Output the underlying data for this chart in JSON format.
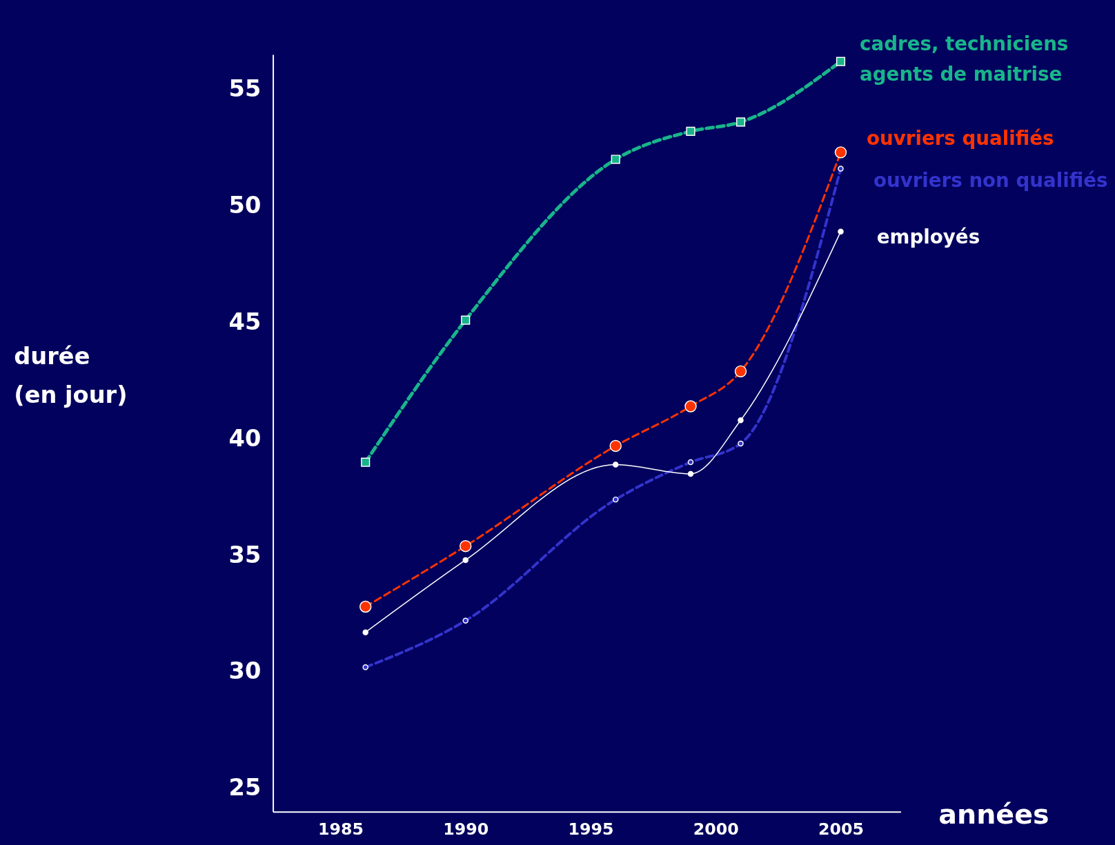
{
  "chart_data": {
    "type": "line",
    "xlabel": "années",
    "ylabel": "durée\n(en jour)",
    "x": [
      1986,
      1990,
      1996,
      1999,
      2001,
      2005
    ],
    "series": [
      {
        "name": "cadres, techniciens\nagents de maitrise",
        "color": "#19b58a",
        "marker": "square",
        "line_style": "dashed",
        "values": [
          39.0,
          45.1,
          52.0,
          53.2,
          53.6,
          56.2
        ]
      },
      {
        "name": "ouvriers qualifiés",
        "color": "#ff3300",
        "marker": "circle",
        "line_style": "dashed",
        "values": [
          32.8,
          35.4,
          39.7,
          41.4,
          42.9,
          52.3
        ]
      },
      {
        "name": "ouvriers non qualifiés",
        "color": "#3333cc",
        "marker": "circle",
        "line_style": "dashed",
        "values": [
          30.2,
          32.2,
          37.4,
          39.0,
          39.8,
          51.6
        ]
      },
      {
        "name": "employés",
        "color": "#ffffff",
        "marker": "circle",
        "line_style": "solid",
        "values": [
          31.7,
          34.8,
          38.9,
          38.5,
          40.8,
          48.9
        ]
      }
    ],
    "xlim": [
      1982.3,
      2007.4
    ],
    "xticks": [
      1985,
      1990,
      1995,
      2000,
      2005
    ],
    "ylim": [
      24,
      56.5
    ],
    "yticks": [
      25,
      30,
      35,
      40,
      45,
      50,
      55
    ],
    "grid": false,
    "legend": false
  }
}
